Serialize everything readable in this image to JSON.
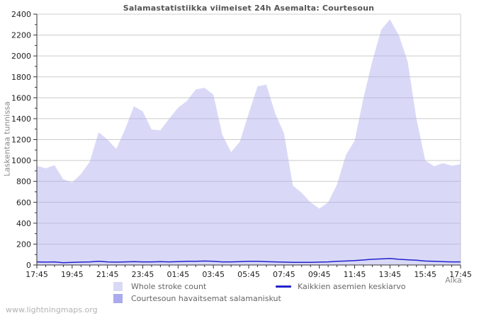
{
  "header": {
    "title": "Salamastatistiikka viimeiset 24h Asemalta: Courtesoun"
  },
  "watermark": "www.lightningmaps.org",
  "colors": {
    "background": "#ffffff",
    "grid": "#cccccc",
    "plot_border": "#cccccc",
    "axis": "#333333",
    "tick_label": "#222222",
    "title_text": "#555555",
    "axis_title_text": "#888888",
    "legend_text": "#666666",
    "area_light": "#d9d9f6",
    "area_dark": "#aaaaee",
    "avg_line": "#2222cc",
    "watermark_text": "#b2b2b2"
  },
  "chart_data": {
    "type": "area",
    "title": "Salamastatistiikka viimeiset 24h Asemalta: Courtesoun",
    "xlabel": "Aika",
    "ylabel": "Laskentaa tunnissa",
    "ylim": [
      0,
      2400
    ],
    "y_tick_step": 200,
    "y_minor_step": 100,
    "y_tick_labels": [
      "0",
      "200",
      "400",
      "600",
      "800",
      "1000",
      "1200",
      "1400",
      "1600",
      "1800",
      "2000",
      "2200",
      "2400"
    ],
    "x_tick_labels": [
      "17:45",
      "19:45",
      "21:45",
      "23:45",
      "01:45",
      "03:45",
      "05:45",
      "07:45",
      "09:45",
      "11:45",
      "13:45",
      "15:45",
      "17:45"
    ],
    "x_minor_interval_minutes": 30,
    "grid": true,
    "legend_position": "bottom",
    "x": [
      "17:45",
      "18:15",
      "18:45",
      "19:15",
      "19:45",
      "20:15",
      "20:45",
      "21:15",
      "21:45",
      "22:15",
      "22:45",
      "23:15",
      "23:45",
      "00:15",
      "00:45",
      "01:15",
      "01:45",
      "02:15",
      "02:45",
      "03:15",
      "03:45",
      "04:15",
      "04:45",
      "05:15",
      "05:45",
      "06:15",
      "06:45",
      "07:15",
      "07:45",
      "08:15",
      "08:45",
      "09:15",
      "09:45",
      "10:15",
      "10:45",
      "11:15",
      "11:45",
      "12:15",
      "12:45",
      "13:15",
      "13:45",
      "14:15",
      "14:45",
      "15:15",
      "15:45",
      "16:15",
      "16:45",
      "17:15",
      "17:45"
    ],
    "series": [
      {
        "name": "Whole stroke count",
        "type": "area",
        "color": "#aaaaee",
        "opacity": 0.45,
        "legend_color": "#d9d9f6",
        "values": [
          950,
          925,
          955,
          820,
          790,
          870,
          990,
          1270,
          1200,
          1110,
          1300,
          1520,
          1470,
          1295,
          1290,
          1400,
          1505,
          1570,
          1680,
          1695,
          1630,
          1250,
          1080,
          1180,
          1450,
          1710,
          1725,
          1450,
          1260,
          760,
          690,
          600,
          540,
          600,
          770,
          1050,
          1190,
          1600,
          1950,
          2250,
          2350,
          2200,
          1950,
          1400,
          1000,
          945,
          975,
          950,
          965
        ]
      },
      {
        "name": "Courtesoun havaitsemat salamaniskut",
        "type": "area",
        "color": "#aaaaee",
        "opacity": 1,
        "legend_color": "#aaaaee",
        "values": [
          0,
          0,
          0,
          0,
          0,
          0,
          0,
          0,
          0,
          0,
          0,
          0,
          0,
          0,
          0,
          0,
          0,
          0,
          0,
          0,
          0,
          0,
          0,
          0,
          0,
          0,
          0,
          0,
          0,
          0,
          0,
          0,
          0,
          0,
          0,
          0,
          0,
          0,
          0,
          0,
          0,
          0,
          0,
          0,
          0,
          0,
          0,
          0,
          0
        ]
      },
      {
        "name": "Kaikkien asemien keskiarvo",
        "type": "line",
        "color": "#2222cc",
        "legend_color": "#2222cc",
        "values": [
          30,
          28,
          30,
          22,
          25,
          28,
          30,
          35,
          30,
          28,
          30,
          32,
          30,
          30,
          32,
          30,
          32,
          35,
          35,
          38,
          35,
          30,
          30,
          32,
          35,
          35,
          32,
          30,
          28,
          25,
          25,
          25,
          28,
          30,
          35,
          38,
          42,
          48,
          55,
          58,
          62,
          55,
          50,
          45,
          38,
          35,
          32,
          30,
          30
        ]
      }
    ]
  }
}
